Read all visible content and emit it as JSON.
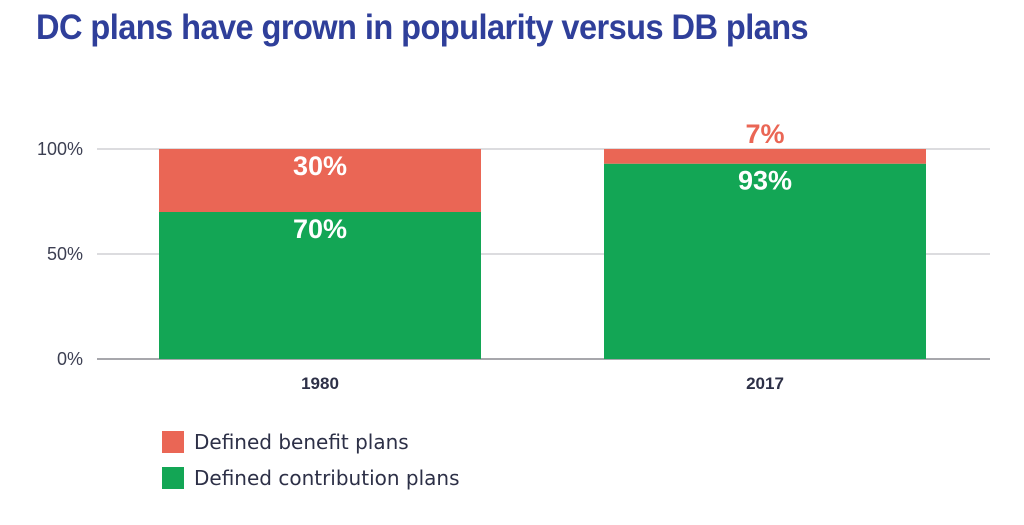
{
  "title": "DC plans have grown in popularity versus DB plans",
  "colors": {
    "title": "#2f3f9a",
    "defined_benefit": "#ea6655",
    "defined_contribution": "#13a655",
    "grid": "#c8c8cc",
    "axis": "#8a8a90"
  },
  "chart_data": {
    "type": "bar",
    "stacked": true,
    "title": "DC plans have grown in popularity versus DB plans",
    "xlabel": "",
    "ylabel": "",
    "categories": [
      "1980",
      "2017"
    ],
    "series": [
      {
        "name": "Defined contribution plans",
        "values": [
          70,
          93
        ],
        "labels": [
          "70%",
          "93%"
        ],
        "color": "#13a655"
      },
      {
        "name": "Defined benefit plans",
        "values": [
          30,
          7
        ],
        "labels": [
          "30%",
          "7%"
        ],
        "color": "#ea6655"
      }
    ],
    "yticks": [
      0,
      50,
      100
    ],
    "ytick_labels": [
      "0%",
      "50%",
      "100%"
    ],
    "ylim": [
      0,
      100
    ],
    "grid": true,
    "legend_position": "bottom-left"
  },
  "legend": [
    {
      "label": "Defined benefit plans",
      "color": "#ea6655"
    },
    {
      "label": "Defined contribution plans",
      "color": "#13a655"
    }
  ]
}
